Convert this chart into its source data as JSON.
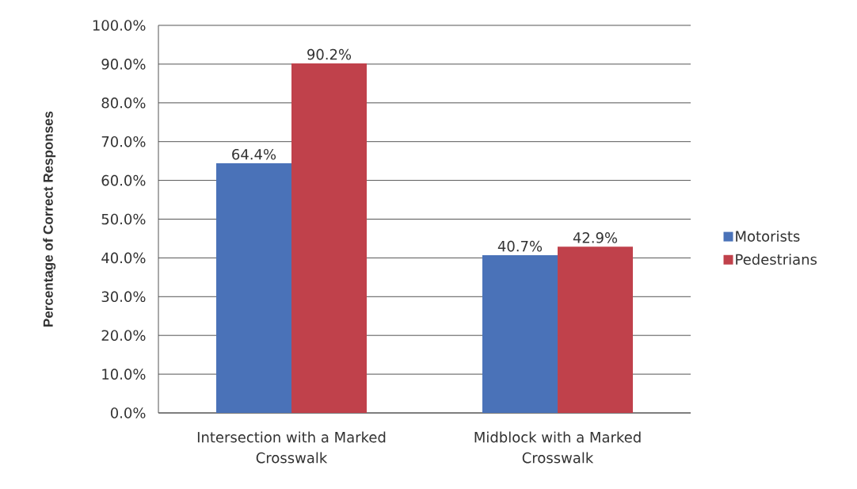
{
  "chart_data": {
    "type": "bar",
    "ylabel": "Percentage of Correct Responses",
    "categories": [
      "Intersection with a Marked Crosswalk",
      "Midblock with a Marked Crosswalk"
    ],
    "series": [
      {
        "name": "Motorists",
        "color": "#4a72b8",
        "values": [
          64.4,
          40.7
        ],
        "value_labels": [
          "64.4%",
          "40.7%"
        ]
      },
      {
        "name": "Pedestrians",
        "color": "#c0414b",
        "values": [
          90.2,
          42.9
        ],
        "value_labels": [
          "90.2%",
          "42.9%"
        ]
      }
    ],
    "ylim": [
      0,
      100
    ],
    "yticks": [
      {
        "value": 0,
        "label": "0.0%"
      },
      {
        "value": 10,
        "label": "10.0%"
      },
      {
        "value": 20,
        "label": "20.0%"
      },
      {
        "value": 30,
        "label": "30.0%"
      },
      {
        "value": 40,
        "label": "40.0%"
      },
      {
        "value": 50,
        "label": "50.0%"
      },
      {
        "value": 60,
        "label": "60.0%"
      },
      {
        "value": 70,
        "label": "70.0%"
      },
      {
        "value": 80,
        "label": "80.0%"
      },
      {
        "value": 90,
        "label": "90.0%"
      },
      {
        "value": 100,
        "label": "100.0%"
      }
    ],
    "grid": "y",
    "legend": "right"
  }
}
